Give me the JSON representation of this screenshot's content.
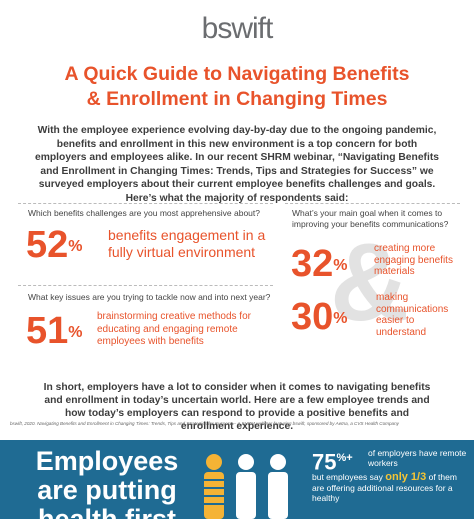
{
  "logo": "bswift",
  "title": [
    "A Quick Guide to Navigating Benefits",
    "& Enrollment in Changing Times"
  ],
  "intro": "With the employee experience evolving day-by-day due to the ongoing pandemic, benefits and enrollment in this new environment is a top concern for both employers and employees alike. In our recent SHRM webinar, “Navigating Benefits and Enrollment in Changing Times: Trends, Tips and Strategies for Success” we surveyed employers about their current employee benefits challenges and goals. Here’s what the majority of respondents said:",
  "questions": [
    {
      "question": "Which benefits challenges are you most apprehensive about?",
      "answers": [
        {
          "number": "52",
          "unit": "%",
          "text": "benefits engagement in a fully virtual environment"
        }
      ]
    },
    {
      "question": "What key issues are you trying to tackle now and into next year?",
      "answers": [
        {
          "number": "51",
          "unit": "%",
          "text": "brainstorming creative methods for educating and engaging remote employees with benefits"
        }
      ]
    },
    {
      "question": "What’s your main goal when it comes to improving your benefits communications?",
      "answers": [
        {
          "number": "32",
          "unit": "%",
          "text": "creating more engaging benefits materials"
        },
        {
          "number": "30",
          "unit": "%",
          "text": "making communications easier to understand"
        }
      ]
    }
  ],
  "ampersand": "&",
  "closing": "In short, employers have a lot to consider when it comes to navigating benefits and enrollment in today’s uncertain world. Here are a few employee trends and how today’s employers can respond to provide a positive benefits and enrollment experience.",
  "citation": "bswift, 2020. Navigating Benefits and Enrollment in Changing Times: Trends, Tips and Strategies for Success – A SHRM webinar featuring bswift, sponsored by Aetna, a CVS Health Company",
  "banner": {
    "heading": [
      "Employees",
      "are putting",
      "health first"
    ],
    "stat": "75",
    "stat_unit": "%+",
    "line1": "of employers have remote workers",
    "line2a": "but employees say",
    "highlight": "only 1/3",
    "line2b": "of them are offering additional resources for a healthy"
  }
}
